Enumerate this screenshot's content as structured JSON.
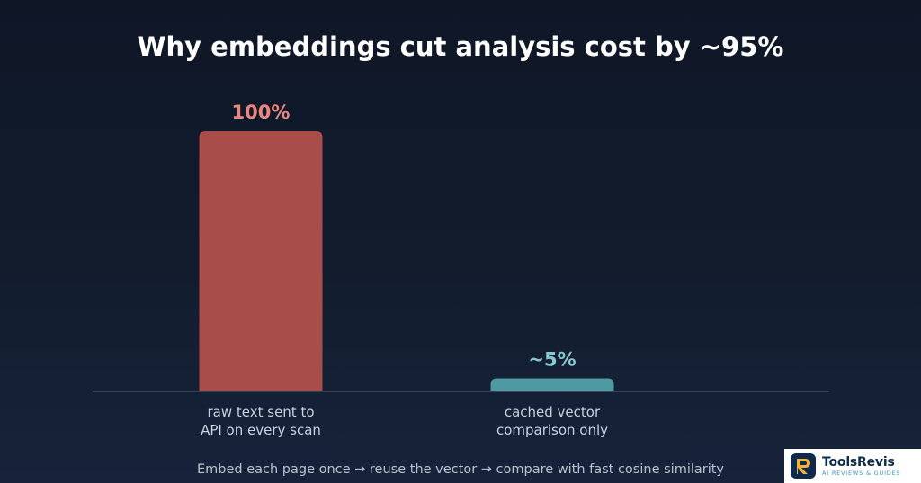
{
  "chart_data": {
    "type": "bar",
    "title": "Why embeddings cut analysis cost by ~95%",
    "categories": [
      [
        "raw text sent to",
        "API on every scan"
      ],
      [
        "cached vector",
        "comparison only"
      ]
    ],
    "values": [
      100,
      5
    ],
    "value_labels": [
      "100%",
      "~5%"
    ],
    "bar_colors": [
      "#a84d49",
      "#4e99a2"
    ],
    "label_colors": [
      "#e8877f",
      "#86c9cf"
    ],
    "ylim": [
      0,
      100
    ],
    "grid": false,
    "footnote": "Embed each page once → reuse the vector → compare with fast cosine similarity"
  },
  "colors": {
    "background": "#121c2d",
    "axis_line": "#4a5567",
    "watermark_bg": "#ffffff"
  },
  "watermark": {
    "brand": "ToolsRevis",
    "tagline": "AI REVIEWS & GUIDES",
    "icon": "tools-revis-logo-icon"
  }
}
